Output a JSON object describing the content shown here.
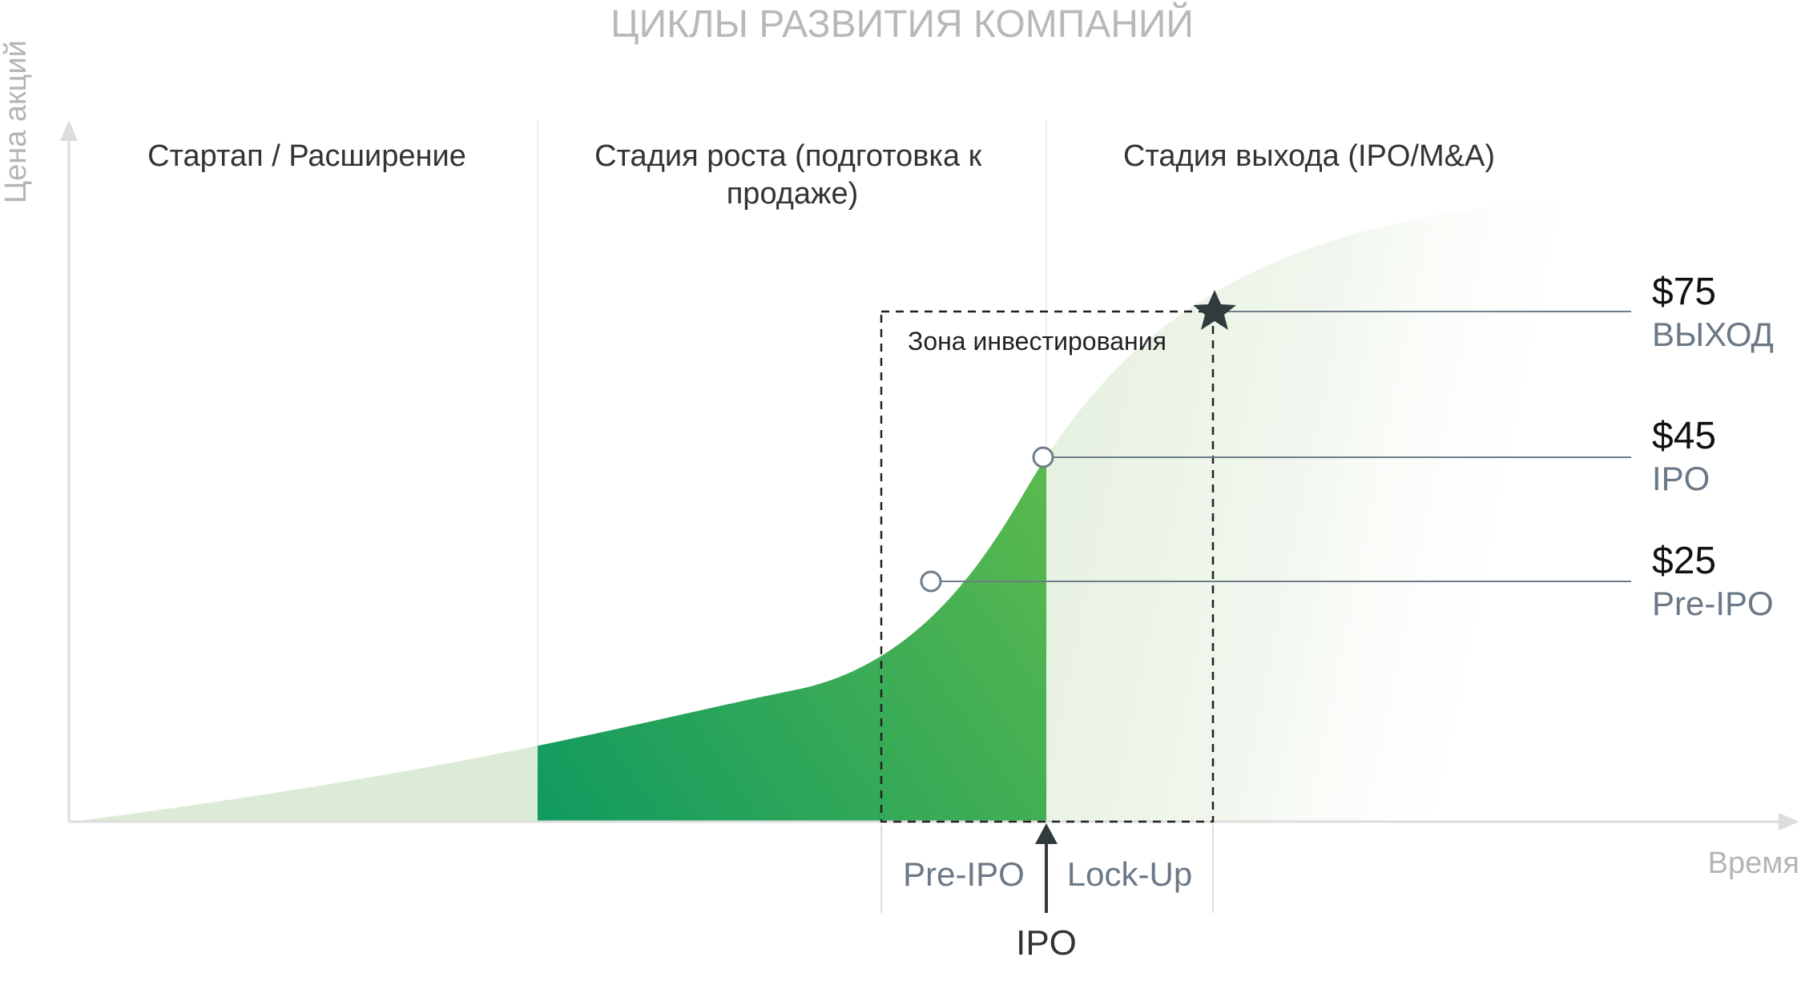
{
  "title": "ЦИКЛЫ РАЗВИТИЯ КОМПАНИЙ",
  "axes": {
    "y_label": "Цена акций",
    "x_label": "Время"
  },
  "stages": [
    {
      "lines": [
        "Стартап / Расширение"
      ]
    },
    {
      "lines": [
        "Стадия роста (подготовка к",
        "продаже)"
      ]
    },
    {
      "lines": [
        "Стадия выхода (IPO/M&A)"
      ]
    }
  ],
  "price_levels": [
    {
      "price": "$75",
      "name": "ВЫХОД",
      "marker": "star-icon"
    },
    {
      "price": "$45",
      "name": "IPO",
      "marker": "circle"
    },
    {
      "price": "$25",
      "name": "Pre-IPO",
      "marker": "circle"
    }
  ],
  "investment_zone": {
    "label": "Зона инвестирования"
  },
  "periods": {
    "pre_ipo": "Pre-IPO",
    "lock_up": "Lock-Up",
    "ipo_marker": "IPO"
  },
  "colors": {
    "curve_light": "#dcebd6",
    "growth_dark": "#109a60",
    "growth_light": "#6cc04a",
    "line_gray": "#6f7d8b",
    "axis_gray": "#dddddd",
    "star": "#2f3b3d"
  }
}
